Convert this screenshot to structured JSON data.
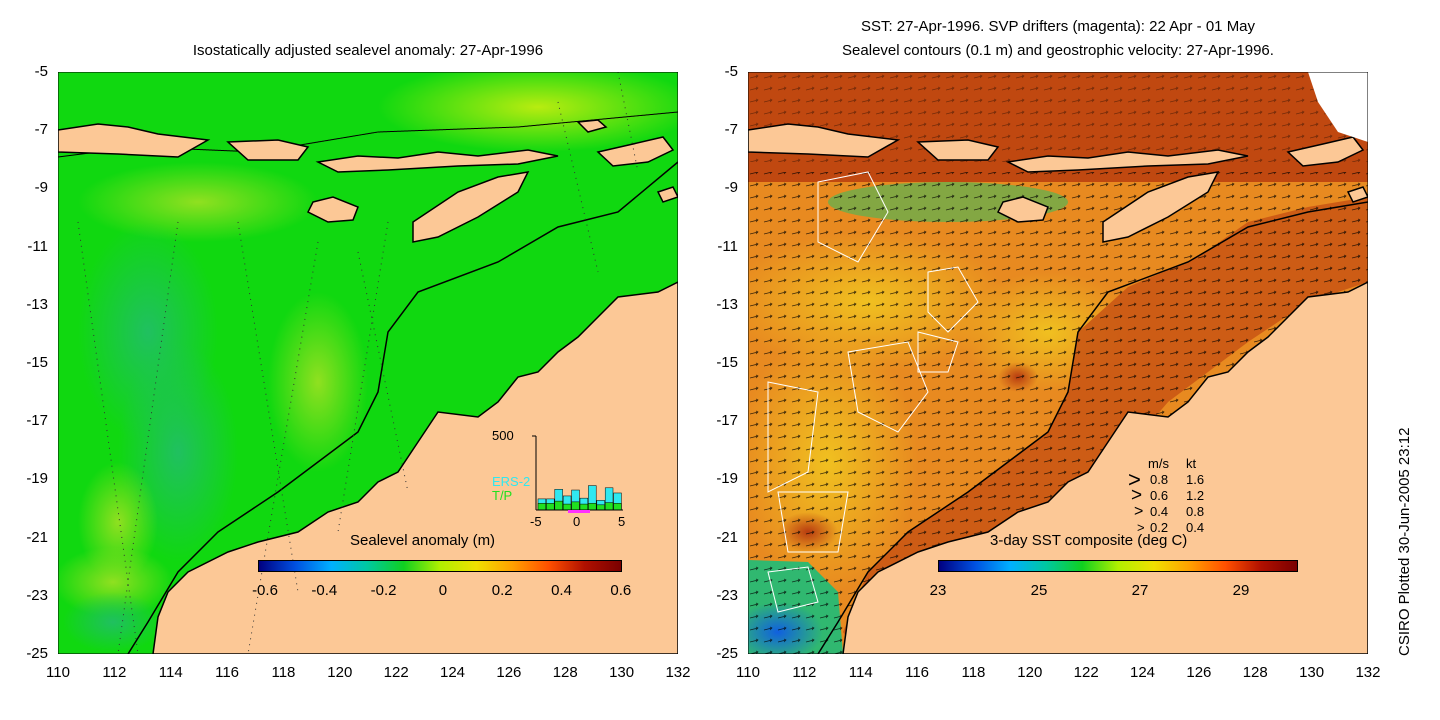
{
  "left_panel": {
    "title": "Isostatically adjusted sealevel anomaly: 27-Apr-1996",
    "y_ticks": [
      "-5",
      "-7",
      "-9",
      "-11",
      "-13",
      "-15",
      "-17",
      "-19",
      "-21",
      "-23",
      "-25"
    ],
    "x_ticks": [
      "110",
      "112",
      "114",
      "116",
      "118",
      "120",
      "122",
      "124",
      "126",
      "128",
      "130",
      "132"
    ],
    "colorbar": {
      "title": "Sealevel anomaly (m)",
      "ticks": [
        "-0.6",
        "-0.4",
        "-0.2",
        "0",
        "0.2",
        "0.4",
        "0.6"
      ],
      "colors": [
        "#000080",
        "#0050e0",
        "#00b0ff",
        "#00c8a0",
        "#10d020",
        "#b0f000",
        "#f0e000",
        "#ffa000",
        "#ff5000",
        "#b01000",
        "#7a0000"
      ]
    },
    "inset": {
      "ymax_label": "500",
      "legend": [
        "ERS-2",
        "T/P"
      ],
      "x_ticks": [
        "-5",
        "0",
        "5"
      ],
      "ers2_color": "#30e8f0",
      "tp_color": "#20e020",
      "bins": [
        {
          "tp": 45,
          "ers": 75
        },
        {
          "tp": 45,
          "ers": 75
        },
        {
          "tp": 60,
          "ers": 140
        },
        {
          "tp": 40,
          "ers": 95
        },
        {
          "tp": 55,
          "ers": 135
        },
        {
          "tp": 40,
          "ers": 80
        },
        {
          "tp": 45,
          "ers": 165
        },
        {
          "tp": 35,
          "ers": 65
        },
        {
          "tp": 50,
          "ers": 150
        },
        {
          "tp": 45,
          "ers": 115
        }
      ]
    }
  },
  "right_panel": {
    "title_line1": "SST: 27-Apr-1996. SVP drifters (magenta): 22 Apr - 01 May",
    "title_line2": "Sealevel contours (0.1 m) and geostrophic velocity: 27-Apr-1996.",
    "y_ticks": [
      "-5",
      "-7",
      "-9",
      "-11",
      "-13",
      "-15",
      "-17",
      "-19",
      "-21",
      "-23",
      "-25"
    ],
    "x_ticks": [
      "110",
      "112",
      "114",
      "116",
      "118",
      "120",
      "122",
      "124",
      "126",
      "128",
      "130",
      "132"
    ],
    "colorbar": {
      "title": "3-day SST composite (deg C)",
      "ticks": [
        "23",
        "25",
        "27",
        "29"
      ],
      "colors": [
        "#000080",
        "#0050e0",
        "#00b0ff",
        "#00c8a0",
        "#10d020",
        "#b0f000",
        "#f0e000",
        "#ffa000",
        "#ff5000",
        "#b01000",
        "#7a0000"
      ]
    },
    "velocity_legend": {
      "header_ms": "m/s",
      "header_kt": "kt",
      "rows": [
        {
          "ms": "0.8",
          "kt": "1.6"
        },
        {
          "ms": "0.6",
          "kt": "1.2"
        },
        {
          "ms": "0.4",
          "kt": "0.8"
        },
        {
          "ms": "0.2",
          "kt": "0.4"
        }
      ]
    }
  },
  "side_label": "CSIRO Plotted 30-Jun-2005 23:12",
  "colors": {
    "land": "#fcc896",
    "ocean_left": "#10d810",
    "ocean_right": "#e88a20",
    "warm_right": "#c04810"
  }
}
